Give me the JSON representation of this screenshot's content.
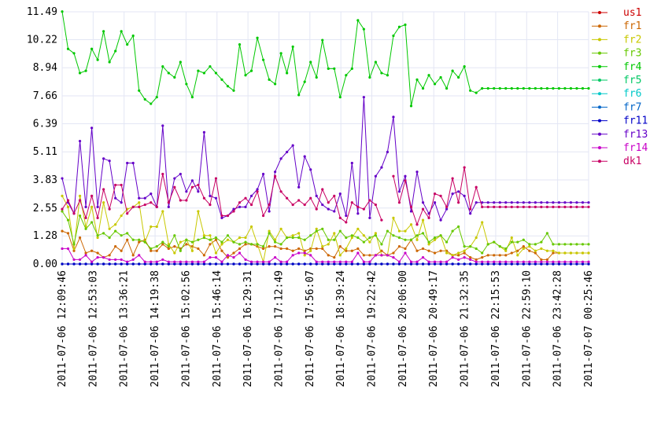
{
  "chart_data": {
    "type": "line",
    "ylim": [
      0,
      11.49
    ],
    "yticks": [
      "0.00",
      "1.28",
      "2.55",
      "3.83",
      "5.11",
      "6.39",
      "7.66",
      "8.94",
      "10.22",
      "11.49"
    ],
    "xticks": [
      "2011-07-06 12:09:46",
      "2011-07-06 12:53:03",
      "2011-07-06 13:36:21",
      "2011-07-06 14:19:38",
      "2011-07-06 15:02:56",
      "2011-07-06 15:46:14",
      "2011-07-06 16:29:31",
      "2011-07-06 17:12:49",
      "2011-07-06 17:56:07",
      "2011-07-06 18:39:24",
      "2011-07-06 19:22:42",
      "2011-07-06 20:06:00",
      "2011-07-06 20:49:17",
      "2011-07-06 21:32:35",
      "2011-07-06 22:15:53",
      "2011-07-06 22:59:10",
      "2011-07-06 23:42:28",
      "2011-07-07 00:25:46"
    ],
    "x_start": "2011-07-06 12:09:46",
    "x_end": "2011-07-07 00:25:46",
    "grid": true,
    "legend_position": "right",
    "series": [
      {
        "name": "us1",
        "color": "#cc0000",
        "values": [
          0,
          0,
          0,
          0,
          0,
          0,
          0,
          0,
          0,
          0,
          0,
          0,
          0,
          0,
          0,
          0,
          0,
          0,
          0,
          0,
          0,
          0,
          0,
          0,
          0,
          0,
          0,
          0,
          0,
          0,
          0,
          0,
          0,
          0,
          0,
          0,
          0,
          0,
          0,
          0,
          0,
          0,
          0,
          0,
          0,
          0,
          0,
          0,
          0,
          0,
          0,
          0,
          0,
          0,
          0,
          0,
          0,
          0,
          0,
          0,
          0,
          0,
          0,
          0,
          0,
          0,
          0,
          0,
          0,
          0,
          0,
          0,
          0,
          0,
          0,
          0,
          0,
          0,
          0,
          0,
          0,
          0,
          0,
          0,
          0,
          0,
          0,
          0,
          0,
          0
        ]
      },
      {
        "name": "fr1",
        "color": "#cc6600",
        "values": [
          1.5,
          1.4,
          0.6,
          1.2,
          0.5,
          0.6,
          0.5,
          0.3,
          0.4,
          0.8,
          0.6,
          1.1,
          0.4,
          1.0,
          1.1,
          0.6,
          0.6,
          0.9,
          0.7,
          0.8,
          0.7,
          0.9,
          0.8,
          0.7,
          0.4,
          0.9,
          1.1,
          0.6,
          0.3,
          0.5,
          0.7,
          0.9,
          0.9,
          0.8,
          0.7,
          0.8,
          0.8,
          0.7,
          0.7,
          0.6,
          0.7,
          0.6,
          0.7,
          0.7,
          0.7,
          0.4,
          0.3,
          0.8,
          0.6,
          0.6,
          0.7,
          0.4,
          0.4,
          0.4,
          0.6,
          0.4,
          0.5,
          0.8,
          0.7,
          1.1,
          0.6,
          0.7,
          0.6,
          0.5,
          0.6,
          0.6,
          0.4,
          0.4,
          0.5,
          0.3,
          0.2,
          0.3,
          0.4,
          0.4,
          0.4,
          0.4,
          0.5,
          0.6,
          0.8,
          0.6,
          0.5,
          0.2,
          0.2,
          0.5,
          0.5,
          0.5,
          0.5,
          0.5,
          0.5,
          0.5
        ]
      },
      {
        "name": "fr2",
        "color": "#c8c800",
        "values": [
          3.1,
          2.6,
          0.7,
          3.1,
          1.7,
          2.6,
          1.2,
          2.8,
          1.6,
          1.8,
          2.2,
          2.5,
          2.6,
          2.8,
          1.0,
          1.7,
          1.7,
          2.4,
          0.9,
          0.5,
          1.0,
          1.1,
          0.6,
          2.4,
          1.3,
          1.3,
          0.5,
          0.9,
          1.1,
          1.0,
          1.2,
          1.2,
          1.7,
          0.9,
          0.1,
          1.5,
          1.1,
          1.6,
          1.2,
          1.3,
          1.4,
          0.4,
          0.6,
          1.6,
          0.8,
          0.9,
          1.4,
          0.4,
          0.7,
          1.2,
          1.6,
          1.3,
          1.0,
          1.4,
          0.4,
          0.4,
          2.1,
          1.5,
          1.5,
          1.8,
          1.1,
          2.0,
          0.9,
          1.1,
          1.3,
          0.5,
          0.4,
          0.5,
          0.6,
          0.8,
          1.2,
          1.9,
          0.9,
          1.0,
          0.8,
          0.6,
          1.2,
          0.4,
          0.7,
          0.8,
          0.6,
          0.7,
          0.6,
          0.6,
          0.5,
          0.5,
          0.5,
          0.5,
          0.5,
          0.5
        ]
      },
      {
        "name": "fr3",
        "color": "#66c800",
        "values": [
          2.4,
          2.0,
          0.9,
          2.2,
          1.6,
          1.9,
          1.3,
          1.4,
          1.2,
          1.5,
          1.3,
          1.4,
          1.1,
          1.1,
          1.0,
          0.7,
          0.8,
          1.0,
          0.8,
          1.3,
          0.6,
          1.1,
          1.0,
          1.1,
          1.2,
          1.1,
          1.2,
          1.0,
          1.3,
          1.0,
          0.9,
          1.0,
          0.9,
          0.9,
          0.8,
          1.4,
          1.0,
          0.9,
          1.2,
          1.2,
          1.2,
          1.1,
          1.3,
          1.5,
          1.6,
          1.1,
          1.1,
          1.5,
          1.2,
          1.3,
          1.2,
          1.0,
          1.2,
          1.3,
          0.9,
          1.5,
          1.3,
          1.2,
          1.1,
          1.1,
          1.3,
          1.4,
          1.0,
          1.2,
          1.3,
          1.0,
          1.5,
          1.7,
          0.8,
          0.8,
          0.7,
          0.5,
          0.9,
          1.0,
          0.8,
          0.7,
          1.0,
          1.0,
          1.1,
          0.9,
          0.9,
          1.0,
          1.4,
          0.9,
          0.9,
          0.9,
          0.9,
          0.9,
          0.9,
          0.9
        ]
      },
      {
        "name": "fr4",
        "color": "#00c800",
        "values": [
          11.5,
          9.8,
          9.6,
          8.7,
          8.8,
          9.8,
          9.3,
          10.6,
          9.2,
          9.7,
          10.6,
          10.0,
          10.4,
          7.9,
          7.5,
          7.3,
          7.6,
          9.0,
          8.7,
          8.5,
          9.2,
          8.2,
          7.6,
          8.8,
          8.7,
          9.0,
          8.7,
          8.4,
          8.1,
          7.9,
          10.0,
          8.6,
          8.8,
          10.3,
          9.3,
          8.4,
          8.2,
          9.6,
          8.7,
          9.9,
          7.7,
          8.3,
          9.2,
          8.5,
          10.2,
          8.9,
          8.9,
          7.6,
          8.6,
          8.9,
          11.1,
          10.7,
          8.5,
          9.2,
          8.7,
          8.6,
          10.4,
          10.8,
          10.9,
          7.2,
          8.4,
          8.0,
          8.6,
          8.2,
          8.5,
          8.0,
          8.8,
          8.5,
          9.0,
          7.9,
          7.8,
          8.0,
          8.0,
          8.0,
          8.0,
          8.0,
          8.0,
          8.0,
          8.0,
          8.0,
          8.0,
          8.0,
          8.0,
          8.0,
          8.0,
          8.0,
          8.0,
          8.0,
          8.0,
          8.0
        ]
      },
      {
        "name": "fr5",
        "color": "#00c864",
        "values": [
          0,
          0,
          0,
          0,
          0,
          0,
          0,
          0,
          0,
          0,
          0,
          0,
          0,
          0,
          0,
          0,
          0,
          0,
          0,
          0,
          0,
          0,
          0,
          0,
          0,
          0,
          0,
          0,
          0,
          0,
          0,
          0,
          0,
          0,
          0,
          0,
          0,
          0,
          0,
          0,
          0,
          0,
          0,
          0,
          0,
          0,
          0,
          0,
          0,
          0,
          0,
          0,
          0,
          0,
          0,
          0,
          0,
          0,
          0,
          0,
          0,
          0,
          0,
          0,
          0,
          0,
          0,
          0,
          0,
          0,
          0,
          0,
          0,
          0,
          0,
          0,
          0,
          0,
          0,
          0,
          0,
          0,
          0,
          0,
          0,
          0,
          0,
          0,
          0,
          0
        ]
      },
      {
        "name": "fr6",
        "color": "#00c8c8",
        "values": [
          0,
          0,
          0,
          0,
          0,
          0,
          0,
          0,
          0,
          0,
          0,
          0,
          0,
          0,
          0,
          0,
          0,
          0,
          0,
          0,
          0,
          0,
          0,
          0,
          0,
          0,
          0,
          0,
          0,
          0,
          0,
          0,
          0,
          0,
          0,
          0,
          0,
          0,
          0,
          0,
          0,
          0,
          0,
          0,
          0,
          0,
          0,
          0,
          0,
          0,
          0,
          0,
          0,
          0,
          0,
          0,
          0,
          0,
          0,
          0,
          0,
          0,
          0,
          0,
          0,
          0,
          0,
          0,
          0,
          0,
          0,
          0,
          0,
          0,
          0,
          0,
          0,
          0,
          0,
          0,
          0,
          0,
          0,
          0,
          0,
          0,
          0,
          0,
          0,
          0
        ]
      },
      {
        "name": "fr7",
        "color": "#0064c8",
        "values": [
          0,
          0,
          0,
          0,
          0,
          0,
          0,
          0,
          0,
          0,
          0,
          0,
          0,
          0,
          0,
          0,
          0,
          0,
          0,
          0,
          0,
          0,
          0,
          0,
          0,
          0,
          0,
          0,
          0,
          0,
          0,
          0,
          0,
          0,
          0,
          0,
          0,
          0,
          0,
          0,
          0,
          0,
          0,
          0,
          0,
          0,
          0,
          0,
          0,
          0,
          0,
          0,
          0,
          0,
          0,
          0,
          0,
          0,
          0,
          0,
          0,
          0,
          0,
          0,
          0,
          0,
          0,
          0,
          0,
          0,
          0,
          0,
          0,
          0,
          0,
          0,
          0,
          0,
          0,
          0,
          0,
          0,
          0,
          0,
          0,
          0,
          0,
          0,
          0,
          0
        ]
      },
      {
        "name": "fr11",
        "color": "#0000c8",
        "values": [
          0,
          0,
          0,
          0,
          0,
          0,
          0,
          0,
          0,
          0,
          0,
          0,
          0,
          0,
          0,
          0,
          0,
          0,
          0,
          0,
          0,
          0,
          0,
          0,
          0,
          0,
          0,
          0,
          0,
          0,
          0,
          0,
          0,
          0,
          0,
          0,
          0,
          0,
          0,
          0,
          0,
          0,
          0,
          0,
          0,
          0,
          0,
          0,
          0,
          0,
          0,
          0,
          0,
          0,
          0,
          0,
          0,
          0,
          0,
          0,
          0,
          0,
          0,
          0,
          0,
          0,
          0,
          0,
          0,
          0,
          0,
          0,
          0,
          0,
          0,
          0,
          0,
          0,
          0,
          0,
          0,
          0,
          0,
          0,
          0,
          0,
          0,
          0,
          0,
          0
        ]
      },
      {
        "name": "fr13",
        "color": "#6400c8",
        "values": [
          3.9,
          2.8,
          2.3,
          5.6,
          2.6,
          6.2,
          2.6,
          4.8,
          4.7,
          3.0,
          2.8,
          4.6,
          4.6,
          3.0,
          3.0,
          3.2,
          2.6,
          6.3,
          2.6,
          3.9,
          4.1,
          3.3,
          3.8,
          3.3,
          6.0,
          3.1,
          3.0,
          2.1,
          2.2,
          2.5,
          2.6,
          2.6,
          3.1,
          3.4,
          4.1,
          2.4,
          4.2,
          4.8,
          5.1,
          5.4,
          3.5,
          4.9,
          4.3,
          3.1,
          2.7,
          2.5,
          2.4,
          3.2,
          2.2,
          4.6,
          2.3,
          7.6,
          2.1,
          4.0,
          4.4,
          5.1,
          6.7,
          3.3,
          4.0,
          2.4,
          4.2,
          2.8,
          2.3,
          2.8,
          2.0,
          2.5,
          3.2,
          3.3,
          3.1,
          2.3,
          2.8,
          2.8,
          2.8,
          2.8,
          2.8,
          2.8,
          2.8,
          2.8,
          2.8,
          2.8,
          2.8,
          2.8,
          2.8,
          2.8,
          2.8,
          2.8,
          2.8,
          2.8,
          2.8,
          2.8
        ]
      },
      {
        "name": "fr14",
        "color": "#c800c8",
        "values": [
          0.7,
          0.7,
          0.2,
          0.2,
          0.4,
          0.1,
          0.3,
          0.3,
          0.2,
          0.2,
          0.2,
          0.1,
          0.2,
          0.4,
          0.1,
          0.1,
          0.1,
          0.2,
          0.1,
          0.1,
          0.1,
          0.1,
          0.1,
          0.1,
          0.1,
          0.3,
          0.3,
          0.1,
          0.4,
          0.3,
          0.5,
          0.2,
          0.1,
          0.1,
          0.1,
          0.1,
          0.3,
          0.1,
          0.1,
          0.4,
          0.5,
          0.5,
          0.4,
          0.1,
          0.1,
          0.1,
          0.1,
          0.1,
          0.1,
          0.1,
          0.5,
          0.1,
          0.1,
          0.4,
          0.4,
          0.4,
          0.3,
          0.1,
          0.5,
          0.1,
          0.1,
          0.3,
          0.1,
          0.1,
          0.1,
          0.1,
          0.3,
          0.2,
          0.3,
          0.2,
          0.1,
          0.1,
          0.1,
          0.1,
          0.1,
          0.1,
          0.1,
          0.1,
          0.1,
          0.1,
          0.1,
          0.1,
          0.1,
          0.1,
          0.1,
          0.1,
          0.1,
          0.1,
          0.1,
          0.1
        ]
      },
      {
        "name": "dk1",
        "color": "#c80064",
        "values": [
          2.5,
          2.9,
          2.3,
          2.9,
          2.1,
          3.1,
          2.1,
          3.4,
          2.5,
          3.6,
          3.6,
          2.3,
          2.6,
          2.6,
          2.7,
          2.8,
          2.6,
          4.1,
          2.8,
          3.5,
          2.9,
          2.9,
          3.5,
          3.6,
          3.0,
          2.7,
          3.9,
          2.2,
          2.2,
          2.4,
          2.8,
          3.0,
          2.7,
          3.3,
          2.2,
          2.7,
          4.0,
          3.3,
          3.0,
          2.7,
          2.9,
          2.7,
          3.0,
          2.5,
          3.4,
          2.8,
          3.1,
          2.1,
          1.9,
          2.8,
          2.6,
          2.5,
          2.9,
          2.7,
          2.0,
          null,
          4.0,
          2.8,
          3.8,
          2.6,
          1.8,
          2.5,
          2.1,
          3.2,
          3.1,
          2.6,
          3.9,
          2.8,
          4.4,
          2.5,
          3.5,
          2.6,
          2.6,
          2.6,
          2.6,
          2.6,
          2.6,
          2.6,
          2.6,
          2.6,
          2.6,
          2.6,
          2.6,
          2.6,
          2.6,
          2.6,
          2.6,
          2.6,
          2.6,
          2.6
        ]
      }
    ]
  }
}
